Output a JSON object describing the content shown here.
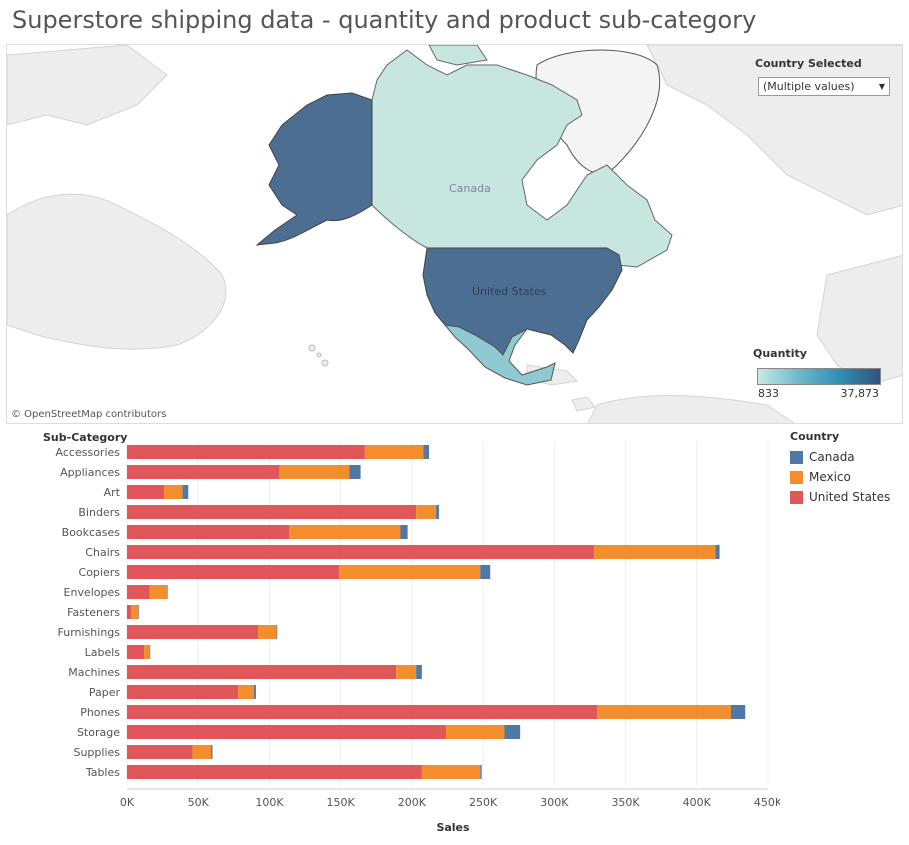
{
  "title": "Superstore shipping data - quantity and product sub-category",
  "map": {
    "attribution": "© OpenStreetMap contributors",
    "labels": {
      "canada": "Canada",
      "usa": "United States"
    },
    "filter_title": "Country Selected",
    "filter_value": "(Multiple values)",
    "legend_title": "Quantity",
    "legend_min": "833",
    "legend_max": "37,873",
    "colors": {
      "usa": "#4d6e93",
      "alaska": "#4d6e93",
      "canada": "#c6e6df",
      "mexico": "#8fcad3"
    }
  },
  "legend": {
    "title": "Country",
    "items": [
      {
        "label": "Canada",
        "color": "#4e79a7"
      },
      {
        "label": "Mexico",
        "color": "#f28e2b"
      },
      {
        "label": "United States",
        "color": "#e15759"
      }
    ]
  },
  "chart_data": {
    "type": "bar",
    "orientation": "horizontal",
    "stacked": true,
    "title": "",
    "ylabel": "Sub-Category",
    "xlabel": "Sales",
    "xlim": [
      0,
      450000
    ],
    "xticks": [
      "0K",
      "50K",
      "100K",
      "150K",
      "200K",
      "250K",
      "300K",
      "350K",
      "400K",
      "450K"
    ],
    "categories": [
      "Accessories",
      "Appliances",
      "Art",
      "Binders",
      "Bookcases",
      "Chairs",
      "Copiers",
      "Envelopes",
      "Fasteners",
      "Furnishings",
      "Labels",
      "Machines",
      "Paper",
      "Phones",
      "Storage",
      "Supplies",
      "Tables"
    ],
    "series": [
      {
        "name": "United States",
        "color": "#e15759",
        "values": [
          167000,
          107000,
          26000,
          203000,
          114000,
          328000,
          149000,
          16000,
          3000,
          92000,
          12000,
          189000,
          78000,
          330000,
          224000,
          46000,
          207000
        ]
      },
      {
        "name": "Mexico",
        "color": "#f28e2b",
        "values": [
          41000,
          49000,
          13000,
          14000,
          78000,
          85000,
          99000,
          12000,
          5000,
          13000,
          4000,
          14000,
          11000,
          94000,
          41000,
          13000,
          41000
        ]
      },
      {
        "name": "Canada",
        "color": "#4e79a7",
        "values": [
          4000,
          8000,
          4000,
          2000,
          5000,
          3000,
          7000,
          500,
          300,
          500,
          300,
          4000,
          1500,
          10000,
          11000,
          1000,
          1000
        ]
      }
    ]
  }
}
